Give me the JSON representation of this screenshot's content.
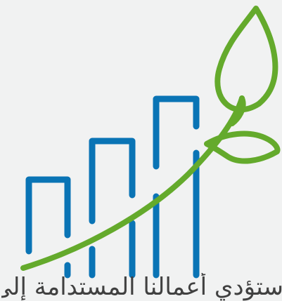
{
  "colors": {
    "background": "#f1f2f2",
    "bars": "#0a74b5",
    "plant": "#64aa2c",
    "caption": "#404040"
  },
  "icon": {
    "name": "growth-chart-sprout-icon"
  },
  "caption": {
    "text": "ستؤدي أعمالنا المستدامة إلى نمو ثابت"
  }
}
